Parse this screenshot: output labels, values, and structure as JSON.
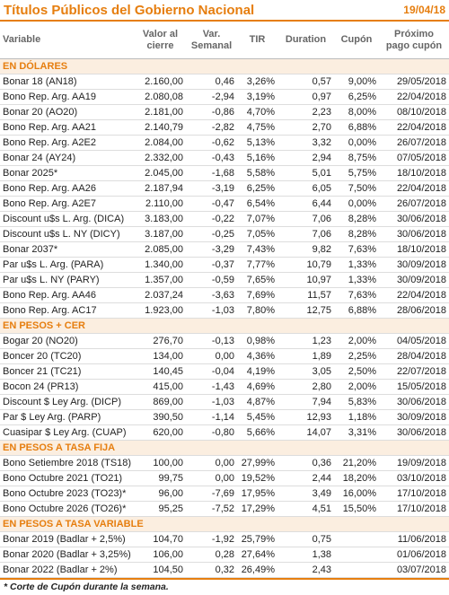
{
  "header": {
    "title": "Títulos Públicos del Gobierno Nacional",
    "date": "19/04/18"
  },
  "table": {
    "columns": [
      "Variable",
      "Valor al cierre",
      "Var. Semanal",
      "TIR",
      "Duration",
      "Cupón",
      "Próximo pago cupón"
    ],
    "sections": [
      {
        "title": "EN DÓLARES",
        "rows": [
          [
            "Bonar 18 (AN18)",
            "2.160,00",
            "0,46",
            "3,26%",
            "0,57",
            "9,00%",
            "29/05/2018"
          ],
          [
            "Bono Rep. Arg. AA19",
            "2.080,08",
            "-2,94",
            "3,19%",
            "0,97",
            "6,25%",
            "22/04/2018"
          ],
          [
            "Bonar 20 (AO20)",
            "2.181,00",
            "-0,86",
            "4,70%",
            "2,23",
            "8,00%",
            "08/10/2018"
          ],
          [
            "Bono Rep. Arg. AA21",
            "2.140,79",
            "-2,82",
            "4,75%",
            "2,70",
            "6,88%",
            "22/04/2018"
          ],
          [
            "Bono Rep. Arg. A2E2",
            "2.084,00",
            "-0,62",
            "5,13%",
            "3,32",
            "0,00%",
            "26/07/2018"
          ],
          [
            "Bonar 24 (AY24)",
            "2.332,00",
            "-0,43",
            "5,16%",
            "2,94",
            "8,75%",
            "07/05/2018"
          ],
          [
            "Bonar 2025*",
            "2.045,00",
            "-1,68",
            "5,58%",
            "5,01",
            "5,75%",
            "18/10/2018"
          ],
          [
            "Bono Rep. Arg. AA26",
            "2.187,94",
            "-3,19",
            "6,25%",
            "6,05",
            "7,50%",
            "22/04/2018"
          ],
          [
            "Bono Rep. Arg. A2E7",
            "2.110,00",
            "-0,47",
            "6,54%",
            "6,44",
            "0,00%",
            "26/07/2018"
          ],
          [
            "Discount u$s L. Arg. (DICA)",
            "3.183,00",
            "-0,22",
            "7,07%",
            "7,06",
            "8,28%",
            "30/06/2018"
          ],
          [
            "Discount u$s L. NY (DICY)",
            "3.187,00",
            "-0,25",
            "7,05%",
            "7,06",
            "8,28%",
            "30/06/2018"
          ],
          [
            "Bonar 2037*",
            "2.085,00",
            "-3,29",
            "7,43%",
            "9,82",
            "7,63%",
            "18/10/2018"
          ],
          [
            "Par u$s L. Arg. (PARA)",
            "1.340,00",
            "-0,37",
            "7,77%",
            "10,79",
            "1,33%",
            "30/09/2018"
          ],
          [
            "Par u$s L. NY (PARY)",
            "1.357,00",
            "-0,59",
            "7,65%",
            "10,97",
            "1,33%",
            "30/09/2018"
          ],
          [
            "Bono Rep. Arg. AA46",
            "2.037,24",
            "-3,63",
            "7,69%",
            "11,57",
            "7,63%",
            "22/04/2018"
          ],
          [
            "Bono Rep. Arg. AC17",
            "1.923,00",
            "-1,03",
            "7,80%",
            "12,75",
            "6,88%",
            "28/06/2018"
          ]
        ]
      },
      {
        "title": "EN PESOS + CER",
        "rows": [
          [
            "Bogar 20 (NO20)",
            "276,70",
            "-0,13",
            "0,98%",
            "1,23",
            "2,00%",
            "04/05/2018"
          ],
          [
            "Boncer 20 (TC20)",
            "134,00",
            "0,00",
            "4,36%",
            "1,89",
            "2,25%",
            "28/04/2018"
          ],
          [
            "Boncer 21 (TC21)",
            "140,45",
            "-0,04",
            "4,19%",
            "3,05",
            "2,50%",
            "22/07/2018"
          ],
          [
            "Bocon 24 (PR13)",
            "415,00",
            "-1,43",
            "4,69%",
            "2,80",
            "2,00%",
            "15/05/2018"
          ],
          [
            "Discount $ Ley Arg. (DICP)",
            "869,00",
            "-1,03",
            "4,87%",
            "7,94",
            "5,83%",
            "30/06/2018"
          ],
          [
            "Par $ Ley Arg. (PARP)",
            "390,50",
            "-1,14",
            "5,45%",
            "12,93",
            "1,18%",
            "30/09/2018"
          ],
          [
            "Cuasipar $ Ley Arg. (CUAP)",
            "620,00",
            "-0,80",
            "5,66%",
            "14,07",
            "3,31%",
            "30/06/2018"
          ]
        ]
      },
      {
        "title": "EN PESOS A TASA FIJA",
        "rows": [
          [
            "Bono Setiembre 2018 (TS18)",
            "100,00",
            "0,00",
            "27,99%",
            "0,36",
            "21,20%",
            "19/09/2018"
          ],
          [
            "Bono Octubre 2021 (TO21)",
            "99,75",
            "0,00",
            "19,52%",
            "2,44",
            "18,20%",
            "03/10/2018"
          ],
          [
            "Bono Octubre 2023 (TO23)*",
            "96,00",
            "-7,69",
            "17,95%",
            "3,49",
            "16,00%",
            "17/10/2018"
          ],
          [
            "Bono Octubre 2026 (TO26)*",
            "95,25",
            "-7,52",
            "17,29%",
            "4,51",
            "15,50%",
            "17/10/2018"
          ]
        ]
      },
      {
        "title": "EN PESOS A TASA VARIABLE",
        "rows": [
          [
            "Bonar 2019 (Badlar + 2,5%)",
            "104,70",
            "-1,92",
            "25,79%",
            "0,75",
            null,
            "11/06/2018"
          ],
          [
            "Bonar 2020 (Badlar + 3,25%)",
            "106,00",
            "0,28",
            "27,64%",
            "1,38",
            null,
            "01/06/2018"
          ],
          [
            "Bonar 2022 (Badlar + 2%)",
            "104,50",
            "0,32",
            "26,49%",
            "2,43",
            null,
            "03/07/2018"
          ]
        ]
      }
    ]
  },
  "footnote": "* Corte de Cupón durante la semana."
}
